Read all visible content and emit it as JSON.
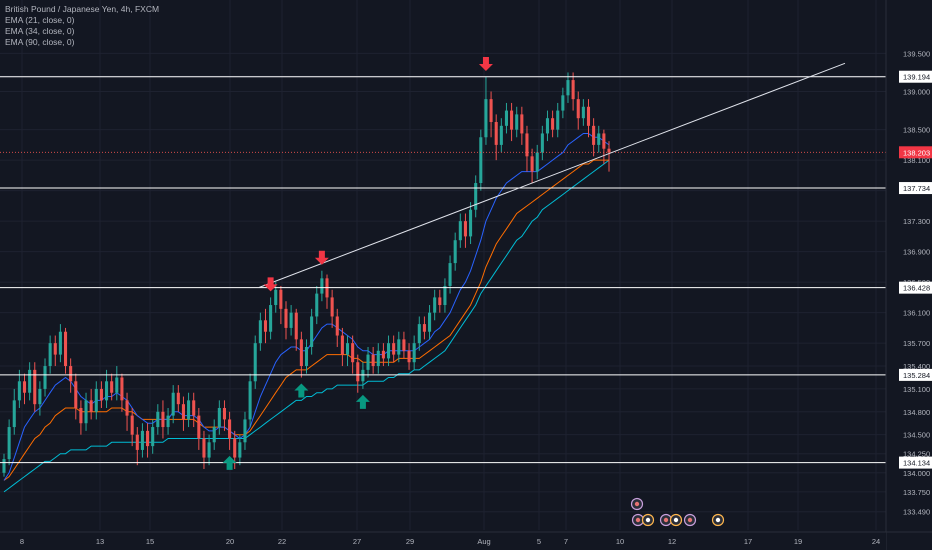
{
  "legend": {
    "title": "British Pound / Japanese Yen, 4h, FXCM",
    "indicators": [
      "EMA (21, close, 0)",
      "EMA (34, close, 0)",
      "EMA (90, close, 0)"
    ]
  },
  "chart_data": {
    "type": "candlestick",
    "instrument": "British Pound / Japanese Yen",
    "timeframe": "4h",
    "source": "FXCM",
    "ylim": [
      133.25,
      140.2
    ],
    "y_ticks": [
      133.49,
      133.75,
      134.0,
      134.25,
      134.5,
      134.8,
      135.1,
      135.4,
      135.7,
      136.1,
      136.5,
      136.9,
      137.3,
      137.7,
      138.1,
      138.5,
      139.0,
      139.2,
      139.5
    ],
    "y_tick_labels": [
      "133.490",
      "133.750",
      "134.000",
      "134.250",
      "134.500",
      "134.800",
      "135.100",
      "135.400",
      "135.700",
      "136.100",
      "136.500",
      "136.900",
      "137.300",
      "137.700",
      "138.100",
      "138.500",
      "139.000",
      "139.200",
      "139.500"
    ],
    "x_tick_labels": [
      "8",
      "13",
      "15",
      "20",
      "22",
      "27",
      "29",
      "Aug",
      "5",
      "7",
      "10",
      "12",
      "17",
      "19",
      "24"
    ],
    "current_price": {
      "value": 138.203,
      "label": "138.203"
    },
    "horizontal_levels": [
      {
        "value": 139.194,
        "label": "139.194"
      },
      {
        "value": 137.734,
        "label": "137.734"
      },
      {
        "value": 136.428,
        "label": "136.428"
      },
      {
        "value": 135.284,
        "label": "135.284"
      },
      {
        "value": 134.134,
        "label": "134.134"
      }
    ],
    "trendline": {
      "from": [
        259,
        136.43
      ],
      "to": [
        845,
        139.37
      ]
    },
    "candles": [
      [
        134.0,
        134.18,
        133.95,
        134.25
      ],
      [
        134.18,
        134.6,
        134.1,
        134.7
      ],
      [
        134.6,
        134.95,
        134.5,
        135.1
      ],
      [
        134.95,
        135.2,
        134.85,
        135.35
      ],
      [
        135.2,
        135.05,
        134.9,
        135.3
      ],
      [
        135.05,
        135.35,
        134.95,
        135.45
      ],
      [
        135.35,
        134.9,
        134.8,
        135.45
      ],
      [
        134.9,
        135.1,
        134.75,
        135.2
      ],
      [
        135.1,
        135.4,
        135.0,
        135.5
      ],
      [
        135.4,
        135.7,
        135.3,
        135.8
      ],
      [
        135.7,
        135.55,
        135.4,
        135.8
      ],
      [
        135.55,
        135.85,
        135.45,
        135.95
      ],
      [
        135.85,
        135.4,
        135.3,
        135.9
      ],
      [
        135.4,
        135.2,
        135.05,
        135.5
      ],
      [
        135.2,
        134.85,
        134.7,
        135.3
      ],
      [
        134.85,
        134.65,
        134.5,
        134.95
      ],
      [
        134.65,
        134.95,
        134.55,
        135.05
      ],
      [
        134.95,
        134.8,
        134.7,
        135.1
      ],
      [
        134.8,
        135.1,
        134.7,
        135.2
      ],
      [
        135.1,
        134.95,
        134.85,
        135.2
      ],
      [
        134.95,
        135.2,
        134.85,
        135.35
      ],
      [
        135.2,
        135.05,
        134.95,
        135.3
      ],
      [
        135.05,
        135.25,
        134.95,
        135.4
      ],
      [
        135.25,
        134.95,
        134.8,
        135.3
      ],
      [
        134.95,
        134.75,
        134.55,
        135.05
      ],
      [
        134.75,
        134.5,
        134.35,
        134.85
      ],
      [
        134.5,
        134.3,
        134.1,
        134.6
      ],
      [
        134.3,
        134.55,
        134.2,
        134.65
      ],
      [
        134.55,
        134.35,
        134.2,
        134.65
      ],
      [
        134.35,
        134.6,
        134.25,
        134.7
      ],
      [
        134.6,
        134.8,
        134.5,
        134.9
      ],
      [
        134.8,
        134.6,
        134.45,
        134.95
      ],
      [
        134.6,
        134.75,
        134.5,
        134.85
      ],
      [
        134.75,
        135.05,
        134.65,
        135.15
      ],
      [
        135.05,
        134.9,
        134.8,
        135.15
      ],
      [
        134.9,
        134.7,
        134.55,
        135.0
      ],
      [
        134.7,
        134.95,
        134.6,
        135.05
      ],
      [
        134.95,
        134.75,
        134.6,
        135.05
      ],
      [
        134.75,
        134.45,
        134.3,
        134.85
      ],
      [
        134.45,
        134.2,
        134.05,
        134.55
      ],
      [
        134.2,
        134.4,
        134.1,
        134.5
      ],
      [
        134.4,
        134.6,
        134.3,
        134.7
      ],
      [
        134.6,
        134.85,
        134.5,
        134.95
      ],
      [
        134.85,
        134.7,
        134.55,
        134.95
      ],
      [
        134.7,
        134.45,
        134.3,
        134.8
      ],
      [
        134.45,
        134.2,
        134.05,
        134.55
      ],
      [
        134.2,
        134.4,
        134.1,
        134.5
      ],
      [
        134.4,
        134.7,
        134.3,
        134.8
      ],
      [
        134.7,
        135.2,
        134.6,
        135.3
      ],
      [
        135.2,
        135.7,
        135.1,
        135.8
      ],
      [
        135.7,
        136.0,
        135.6,
        136.1
      ],
      [
        136.0,
        135.85,
        135.7,
        136.15
      ],
      [
        135.85,
        136.2,
        135.75,
        136.3
      ],
      [
        136.2,
        136.4,
        136.1,
        136.5
      ],
      [
        136.4,
        136.15,
        135.95,
        136.45
      ],
      [
        136.15,
        135.9,
        135.75,
        136.25
      ],
      [
        135.9,
        136.1,
        135.8,
        136.2
      ],
      [
        136.1,
        135.75,
        135.6,
        136.15
      ],
      [
        135.75,
        135.4,
        135.25,
        135.85
      ],
      [
        135.4,
        135.65,
        135.3,
        135.75
      ],
      [
        135.65,
        136.05,
        135.55,
        136.15
      ],
      [
        136.05,
        136.35,
        135.95,
        136.45
      ],
      [
        136.35,
        136.55,
        136.25,
        136.65
      ],
      [
        136.55,
        136.3,
        136.15,
        136.6
      ],
      [
        136.3,
        136.05,
        135.9,
        136.4
      ],
      [
        136.05,
        135.8,
        135.65,
        136.15
      ],
      [
        135.8,
        135.55,
        135.4,
        135.9
      ],
      [
        135.55,
        135.7,
        135.4,
        135.8
      ],
      [
        135.7,
        135.45,
        135.3,
        135.8
      ],
      [
        135.45,
        135.2,
        135.05,
        135.55
      ],
      [
        135.2,
        135.35,
        135.1,
        135.45
      ],
      [
        135.35,
        135.55,
        135.25,
        135.65
      ],
      [
        135.55,
        135.4,
        135.3,
        135.65
      ],
      [
        135.4,
        135.6,
        135.3,
        135.7
      ],
      [
        135.6,
        135.5,
        135.4,
        135.7
      ],
      [
        135.5,
        135.7,
        135.4,
        135.8
      ],
      [
        135.7,
        135.55,
        135.45,
        135.8
      ],
      [
        135.55,
        135.75,
        135.45,
        135.85
      ],
      [
        135.75,
        135.6,
        135.5,
        135.85
      ],
      [
        135.6,
        135.45,
        135.35,
        135.7
      ],
      [
        135.45,
        135.7,
        135.35,
        135.8
      ],
      [
        135.7,
        135.95,
        135.6,
        136.05
      ],
      [
        135.95,
        135.85,
        135.75,
        136.05
      ],
      [
        135.85,
        136.1,
        135.75,
        136.2
      ],
      [
        136.1,
        136.3,
        136.0,
        136.4
      ],
      [
        136.3,
        136.2,
        136.1,
        136.4
      ],
      [
        136.2,
        136.45,
        136.1,
        136.55
      ],
      [
        136.45,
        136.75,
        136.35,
        136.85
      ],
      [
        136.75,
        137.05,
        136.65,
        137.15
      ],
      [
        137.05,
        137.3,
        136.95,
        137.4
      ],
      [
        137.3,
        137.1,
        136.95,
        137.4
      ],
      [
        137.1,
        137.45,
        137.0,
        137.55
      ],
      [
        137.45,
        137.8,
        137.35,
        137.9
      ],
      [
        137.8,
        138.4,
        137.7,
        138.5
      ],
      [
        138.4,
        138.9,
        138.3,
        139.19
      ],
      [
        138.9,
        138.6,
        138.4,
        139.0
      ],
      [
        138.6,
        138.3,
        138.1,
        138.7
      ],
      [
        138.3,
        138.55,
        138.2,
        138.65
      ],
      [
        138.55,
        138.75,
        138.45,
        138.85
      ],
      [
        138.75,
        138.5,
        138.35,
        138.85
      ],
      [
        138.5,
        138.7,
        138.4,
        138.8
      ],
      [
        138.7,
        138.45,
        138.3,
        138.8
      ],
      [
        138.45,
        138.15,
        137.95,
        138.55
      ],
      [
        138.15,
        137.95,
        137.8,
        138.25
      ],
      [
        137.95,
        138.2,
        137.85,
        138.3
      ],
      [
        138.2,
        138.45,
        138.1,
        138.55
      ],
      [
        138.45,
        138.65,
        138.35,
        138.75
      ],
      [
        138.65,
        138.5,
        138.4,
        138.75
      ],
      [
        138.5,
        138.75,
        138.4,
        138.85
      ],
      [
        138.75,
        138.95,
        138.65,
        139.05
      ],
      [
        138.95,
        139.15,
        138.85,
        139.25
      ],
      [
        139.15,
        138.9,
        138.75,
        139.25
      ],
      [
        138.9,
        138.65,
        138.5,
        139.0
      ],
      [
        138.65,
        138.8,
        138.55,
        138.9
      ],
      [
        138.8,
        138.55,
        138.4,
        138.9
      ],
      [
        138.55,
        138.3,
        138.15,
        138.65
      ],
      [
        138.3,
        138.45,
        138.2,
        138.55
      ],
      [
        138.45,
        138.25,
        138.05,
        138.5
      ],
      [
        138.25,
        138.2,
        137.95,
        138.35
      ]
    ],
    "ema21": [
      133.9,
      134.0,
      134.2,
      134.4,
      134.6,
      134.7,
      134.8,
      134.85,
      134.95,
      135.05,
      135.15,
      135.2,
      135.25,
      135.2,
      135.1,
      135.0,
      134.95,
      134.9,
      134.95,
      134.95,
      135.0,
      135.0,
      135.05,
      135.0,
      134.95,
      134.85,
      134.75,
      134.7,
      134.65,
      134.65,
      134.7,
      134.7,
      134.7,
      134.8,
      134.8,
      134.75,
      134.75,
      134.75,
      134.7,
      134.6,
      134.55,
      134.55,
      134.6,
      134.6,
      134.55,
      134.5,
      134.45,
      134.5,
      134.6,
      134.8,
      135.0,
      135.15,
      135.3,
      135.45,
      135.55,
      135.6,
      135.65,
      135.65,
      135.6,
      135.6,
      135.7,
      135.8,
      135.9,
      135.95,
      135.95,
      135.9,
      135.85,
      135.8,
      135.75,
      135.65,
      135.6,
      135.6,
      135.55,
      135.55,
      135.55,
      135.6,
      135.6,
      135.6,
      135.6,
      135.6,
      135.6,
      135.65,
      135.7,
      135.75,
      135.85,
      135.9,
      136.0,
      136.1,
      136.25,
      136.4,
      136.5,
      136.65,
      136.85,
      137.05,
      137.3,
      137.45,
      137.6,
      137.7,
      137.8,
      137.85,
      137.9,
      137.95,
      137.95,
      137.95,
      137.95,
      138.0,
      138.05,
      138.1,
      138.15,
      138.2,
      138.3,
      138.35,
      138.4,
      138.45,
      138.45,
      138.4,
      138.4,
      138.35,
      138.3
    ],
    "ema34": [
      133.9,
      133.95,
      134.05,
      134.15,
      134.25,
      134.35,
      134.45,
      134.5,
      134.6,
      134.65,
      134.75,
      134.8,
      134.85,
      134.85,
      134.85,
      134.8,
      134.8,
      134.8,
      134.8,
      134.8,
      134.8,
      134.85,
      134.85,
      134.85,
      134.8,
      134.8,
      134.75,
      134.7,
      134.7,
      134.7,
      134.7,
      134.7,
      134.7,
      134.7,
      134.7,
      134.7,
      134.7,
      134.7,
      134.65,
      134.6,
      134.6,
      134.6,
      134.6,
      134.6,
      134.55,
      134.5,
      134.5,
      134.5,
      134.55,
      134.65,
      134.75,
      134.85,
      134.95,
      135.05,
      135.15,
      135.25,
      135.3,
      135.35,
      135.35,
      135.35,
      135.4,
      135.45,
      135.5,
      135.55,
      135.55,
      135.55,
      135.55,
      135.55,
      135.5,
      135.5,
      135.45,
      135.45,
      135.45,
      135.45,
      135.45,
      135.45,
      135.45,
      135.5,
      135.5,
      135.5,
      135.5,
      135.5,
      135.55,
      135.6,
      135.65,
      135.7,
      135.75,
      135.8,
      135.9,
      136.0,
      136.1,
      136.2,
      136.35,
      136.5,
      136.7,
      136.85,
      137.0,
      137.1,
      137.2,
      137.3,
      137.4,
      137.45,
      137.5,
      137.55,
      137.6,
      137.65,
      137.7,
      137.75,
      137.8,
      137.85,
      137.9,
      137.95,
      138.0,
      138.05,
      138.05,
      138.1,
      138.1,
      138.1,
      138.1
    ],
    "ema90": [
      133.75,
      133.8,
      133.85,
      133.9,
      133.95,
      134.0,
      134.05,
      134.1,
      134.15,
      134.15,
      134.2,
      134.25,
      134.25,
      134.3,
      134.3,
      134.3,
      134.3,
      134.35,
      134.35,
      134.35,
      134.35,
      134.4,
      134.4,
      134.4,
      134.4,
      134.4,
      134.4,
      134.4,
      134.4,
      134.4,
      134.4,
      134.4,
      134.45,
      134.45,
      134.45,
      134.45,
      134.45,
      134.45,
      134.45,
      134.45,
      134.45,
      134.45,
      134.45,
      134.45,
      134.45,
      134.45,
      134.45,
      134.45,
      134.5,
      134.55,
      134.6,
      134.65,
      134.7,
      134.75,
      134.8,
      134.85,
      134.9,
      134.95,
      134.95,
      135.0,
      135.0,
      135.05,
      135.05,
      135.1,
      135.1,
      135.15,
      135.15,
      135.15,
      135.15,
      135.15,
      135.15,
      135.2,
      135.2,
      135.2,
      135.2,
      135.25,
      135.25,
      135.3,
      135.3,
      135.3,
      135.35,
      135.35,
      135.4,
      135.45,
      135.5,
      135.55,
      135.6,
      135.7,
      135.8,
      135.9,
      136.0,
      136.1,
      136.2,
      136.35,
      136.45,
      136.55,
      136.65,
      136.75,
      136.85,
      136.95,
      137.05,
      137.1,
      137.2,
      137.3,
      137.35,
      137.45,
      137.5,
      137.55,
      137.6,
      137.65,
      137.7,
      137.75,
      137.8,
      137.85,
      137.9,
      137.95,
      138.0,
      138.05,
      138.1
    ],
    "markers": [
      {
        "type": "sell",
        "candle": 52
      },
      {
        "type": "sell",
        "candle": 62
      },
      {
        "type": "sell",
        "candle": 94
      },
      {
        "type": "buy",
        "candle": 44
      },
      {
        "type": "buy",
        "candle": 58
      },
      {
        "type": "buy",
        "candle": 70
      }
    ],
    "events": [
      {
        "x": 637,
        "row": 0,
        "kind": "flag"
      },
      {
        "x": 638,
        "row": 1,
        "kind": "flag"
      },
      {
        "x": 648,
        "row": 1,
        "kind": "warn"
      },
      {
        "x": 666,
        "row": 1,
        "kind": "flag"
      },
      {
        "x": 676,
        "row": 1,
        "kind": "warn"
      },
      {
        "x": 690,
        "row": 1,
        "kind": "flag"
      },
      {
        "x": 718,
        "row": 1,
        "kind": "warn"
      }
    ],
    "colors": {
      "background": "#131722",
      "up": "#26a69a",
      "down": "#ef5350",
      "ema21": "#2962ff",
      "ema34": "#ff6d00",
      "ema90": "#00bcd4",
      "levels": "#ffffff",
      "trendline": "#e0e3eb",
      "price_line": "#ef5350",
      "axis_text": "#b2b5be",
      "sell_marker": "#f23645",
      "buy_marker": "#089981"
    }
  }
}
